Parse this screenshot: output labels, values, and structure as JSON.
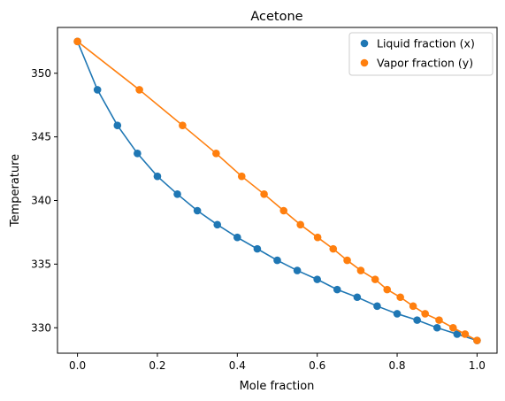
{
  "chart_data": {
    "type": "scatter",
    "title": "Acetone",
    "xlabel": "Mole fraction",
    "ylabel": "Temperature",
    "xlim": [
      -0.05,
      1.05
    ],
    "ylim": [
      328.0,
      353.6
    ],
    "xticks": [
      0.0,
      0.2,
      0.4,
      0.6,
      0.8,
      1.0
    ],
    "xtick_labels": [
      "0.0",
      "0.2",
      "0.4",
      "0.6",
      "0.8",
      "1.0"
    ],
    "yticks": [
      330,
      335,
      340,
      345,
      350
    ],
    "ytick_labels": [
      "330",
      "335",
      "340",
      "345",
      "350"
    ],
    "grid": false,
    "legend_position": "top-right",
    "series": [
      {
        "name": "Liquid fraction (x)",
        "color": "#1f77b4",
        "x": [
          0.0,
          0.05,
          0.1,
          0.15,
          0.2,
          0.25,
          0.3,
          0.35,
          0.4,
          0.45,
          0.5,
          0.55,
          0.6,
          0.65,
          0.7,
          0.75,
          0.8,
          0.85,
          0.9,
          0.95,
          1.0
        ],
        "y": [
          352.5,
          348.7,
          345.9,
          343.7,
          341.9,
          340.5,
          339.2,
          338.1,
          337.1,
          336.2,
          335.3,
          334.5,
          333.8,
          333.0,
          332.4,
          331.7,
          331.1,
          330.6,
          330.0,
          329.5,
          329.0
        ]
      },
      {
        "name": "Vapor fraction (y)",
        "color": "#ff7f0e",
        "x": [
          0.0,
          0.155,
          0.263,
          0.347,
          0.411,
          0.467,
          0.516,
          0.558,
          0.601,
          0.64,
          0.675,
          0.709,
          0.745,
          0.775,
          0.808,
          0.84,
          0.87,
          0.905,
          0.94,
          0.97,
          1.0
        ],
        "y": [
          352.5,
          348.7,
          345.9,
          343.7,
          341.9,
          340.5,
          339.2,
          338.1,
          337.1,
          336.2,
          335.3,
          334.5,
          333.8,
          333.0,
          332.4,
          331.7,
          331.1,
          330.6,
          330.0,
          329.5,
          329.0
        ]
      }
    ]
  }
}
